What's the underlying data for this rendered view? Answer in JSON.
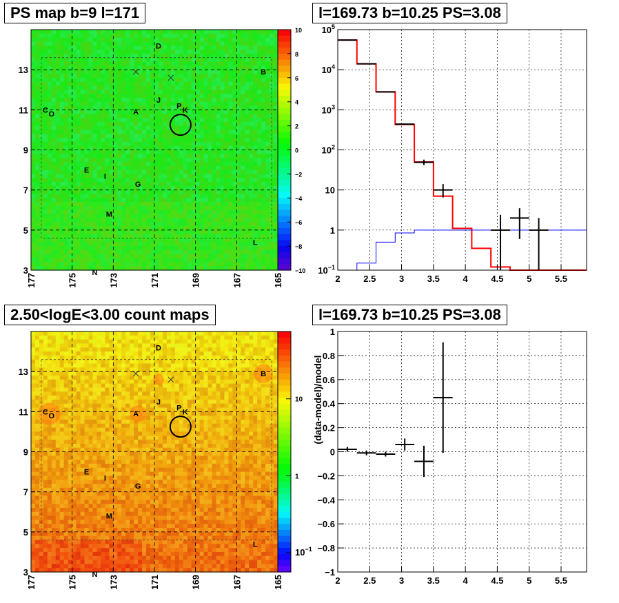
{
  "panels": {
    "ps_map": {
      "title": "PS map b=9 l=171",
      "xticks": [
        "177",
        "175",
        "173",
        "171",
        "169",
        "167",
        "165"
      ],
      "yticks": [
        "3",
        "5",
        "7",
        "9",
        "11",
        "13"
      ],
      "colorbar_ticks": [
        "10",
        "8",
        "6",
        "4",
        "2",
        "0",
        "−2",
        "−4",
        "−6",
        "−8",
        "−10"
      ]
    },
    "spectrum": {
      "title": "l=169.73 b=10.25 PS=3.08",
      "xticks": [
        "2",
        "2.5",
        "3",
        "3.5",
        "4",
        "4.5",
        "5",
        "5.5"
      ],
      "yticks": [
        {
          "base": "10",
          "exp": "5"
        },
        {
          "base": "10",
          "exp": "4"
        },
        {
          "base": "10",
          "exp": "3"
        },
        {
          "base": "10",
          "exp": "2"
        },
        {
          "base": "10",
          "exp": ""
        },
        {
          "base": "1",
          "exp": ""
        },
        {
          "base": "10",
          "exp": "−1"
        }
      ]
    },
    "count_map": {
      "title": "2.50<logE<3.00 count maps",
      "xticks": [
        "177",
        "175",
        "173",
        "171",
        "169",
        "167",
        "165"
      ],
      "yticks": [
        "3",
        "5",
        "7",
        "9",
        "11",
        "13"
      ],
      "colorbar_ticks": [
        "10",
        "1"
      ],
      "colorbar_minor": {
        "base": "10",
        "exp": "−1"
      }
    },
    "residual": {
      "title": "l=169.73 b=10.25 PS=3.08",
      "ylabel": "(data-model)/model",
      "xticks": [
        "2",
        "2.5",
        "3",
        "3.5",
        "4",
        "4.5",
        "5",
        "5.5"
      ],
      "yticks": [
        "1",
        "0.8",
        "0.6",
        "0.4",
        "0.2",
        "0",
        "−0.2",
        "−0.4",
        "−0.6",
        "−0.8",
        "−1"
      ]
    }
  },
  "map_labels": [
    {
      "text": "D",
      "l": 170.8,
      "b": 14.2
    },
    {
      "text": "B",
      "l": 165.7,
      "b": 12.9
    },
    {
      "text": "C",
      "l": 176.3,
      "b": 11.0
    },
    {
      "text": "O",
      "l": 176.0,
      "b": 10.8
    },
    {
      "text": "A",
      "l": 171.9,
      "b": 10.9
    },
    {
      "text": "J",
      "l": 170.8,
      "b": 11.5
    },
    {
      "text": "P",
      "l": 169.8,
      "b": 11.2
    },
    {
      "text": "K",
      "l": 169.5,
      "b": 11.0
    },
    {
      "text": "E",
      "l": 174.3,
      "b": 8.0
    },
    {
      "text": "I",
      "l": 173.4,
      "b": 7.7
    },
    {
      "text": "G",
      "l": 171.8,
      "b": 7.3
    },
    {
      "text": "M",
      "l": 173.2,
      "b": 5.8
    },
    {
      "text": "L",
      "l": 166.1,
      "b": 4.4
    },
    {
      "text": "N",
      "l": 173.9,
      "b": 2.9
    }
  ],
  "chart_data": [
    {
      "type": "heatmap",
      "title": "PS map b=9 l=171",
      "xlabel": "",
      "ylabel": "",
      "xlim": [
        177,
        165
      ],
      "ylim": [
        3,
        15
      ],
      "zlim": [
        -10,
        10
      ],
      "colors": {
        "background": "#20e83e",
        "accent": "#2ff04a"
      },
      "circle": {
        "l": 169.73,
        "b": 10.25
      },
      "crosses": [
        {
          "l": 171.9,
          "b": 12.9
        },
        {
          "l": 170.2,
          "b": 12.6
        }
      ]
    },
    {
      "type": "line",
      "title": "l=169.73 b=10.25 PS=3.08",
      "xlim": [
        2.0,
        5.9
      ],
      "ylim": [
        0.1,
        100000
      ],
      "yscale": "log",
      "series": [
        {
          "color": "#ff0000",
          "edges": [
            2.0,
            2.3,
            2.6,
            2.9,
            3.2,
            3.5,
            3.8,
            4.1,
            4.4,
            4.7,
            5.0,
            5.3,
            5.6,
            5.9
          ],
          "values": [
            55000,
            14000,
            2800,
            430,
            50,
            7,
            1.1,
            0.35,
            0.12,
            0.1,
            0.1,
            0.1,
            0.1
          ]
        },
        {
          "color": "#0000ff",
          "edges": [
            2.0,
            2.3,
            2.6,
            2.9,
            3.2,
            3.5,
            3.8,
            4.1,
            4.4,
            4.7,
            5.0,
            5.3,
            5.6,
            5.9
          ],
          "values": [
            0.1,
            0.15,
            0.5,
            0.85,
            1.0,
            1.0,
            1.0,
            1.0,
            1.0,
            1.0,
            1.0,
            1.0,
            1.0
          ]
        },
        {
          "color": "#000000",
          "kind": "errorbar",
          "points": [
            {
              "x": 2.15,
              "y": 55000,
              "lo": 54000,
              "hi": 56000
            },
            {
              "x": 2.45,
              "y": 14000,
              "lo": 13800,
              "hi": 14200
            },
            {
              "x": 2.75,
              "y": 2800,
              "lo": 2730,
              "hi": 2870
            },
            {
              "x": 3.05,
              "y": 440,
              "lo": 420,
              "hi": 460
            },
            {
              "x": 3.35,
              "y": 49,
              "lo": 42,
              "hi": 57
            },
            {
              "x": 3.65,
              "y": 10,
              "lo": 6.5,
              "hi": 14
            },
            {
              "x": 4.55,
              "y": 1.0,
              "lo": 0.1,
              "hi": 2.4
            },
            {
              "x": 4.85,
              "y": 2.0,
              "lo": 0.6,
              "hi": 3.5
            },
            {
              "x": 5.15,
              "y": 1.0,
              "lo": 0.1,
              "hi": 2.0
            }
          ]
        }
      ]
    },
    {
      "type": "heatmap",
      "title": "2.50<logE<3.00 count maps",
      "xlim": [
        177,
        165
      ],
      "ylim": [
        3,
        15
      ],
      "zscale": "log",
      "zlim": [
        0.05,
        60
      ],
      "colors": {
        "background": "#e8b020",
        "accent": "#ff6a10"
      },
      "circle": {
        "l": 169.73,
        "b": 10.25
      },
      "crosses": [
        {
          "l": 171.9,
          "b": 12.9
        },
        {
          "l": 170.2,
          "b": 12.6
        }
      ]
    },
    {
      "type": "scatter",
      "title": "l=169.73 b=10.25 PS=3.08",
      "ylabel": "(data-model)/model",
      "xlim": [
        2.0,
        5.9
      ],
      "ylim": [
        -1,
        1
      ],
      "points": [
        {
          "x": 2.15,
          "y": 0.02,
          "xerr": 0.15,
          "yerr": 0.02
        },
        {
          "x": 2.45,
          "y": -0.01,
          "xerr": 0.15,
          "yerr": 0.02
        },
        {
          "x": 2.75,
          "y": -0.02,
          "xerr": 0.15,
          "yerr": 0.02
        },
        {
          "x": 3.05,
          "y": 0.06,
          "xerr": 0.15,
          "yerr": 0.05
        },
        {
          "x": 3.35,
          "y": -0.08,
          "xerr": 0.15,
          "yerr": 0.13
        },
        {
          "x": 3.65,
          "y": 0.45,
          "xerr": 0.15,
          "yerr": 0.46
        }
      ]
    }
  ]
}
